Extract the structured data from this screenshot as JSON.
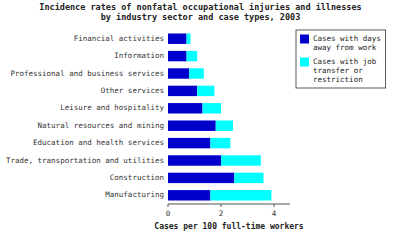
{
  "chart_data": {
    "type": "bar",
    "orientation": "horizontal",
    "stacked": true,
    "title": "Incidence rates of nonfatal occupational injuries and illnesses\nby industry sector and case types, 2003",
    "categories": [
      "Manufacturing",
      "Construction",
      "Trade, transportation and utilities",
      "Education and health services",
      "Natural resources and mining",
      "Leisure and hospitality",
      "Other services",
      "Professional and business services",
      "Information",
      "Financial activities"
    ],
    "series": [
      {
        "name": "Cases with days\naway from work",
        "color": "#0000CC",
        "values": [
          1.6,
          2.5,
          2.0,
          1.6,
          1.8,
          1.3,
          1.1,
          0.8,
          0.7,
          0.7
        ]
      },
      {
        "name": "Cases with job\ntransfer or\nrestriction",
        "color": "#00FFFF",
        "values": [
          2.3,
          1.1,
          1.5,
          0.75,
          0.65,
          0.7,
          0.65,
          0.55,
          0.4,
          0.15
        ]
      }
    ],
    "xlabel": "Cases per 100 full-time workers",
    "xlim": [
      0,
      4.6
    ],
    "xticks": [
      0,
      2,
      4
    ],
    "legend": "upper right",
    "grid": false
  }
}
